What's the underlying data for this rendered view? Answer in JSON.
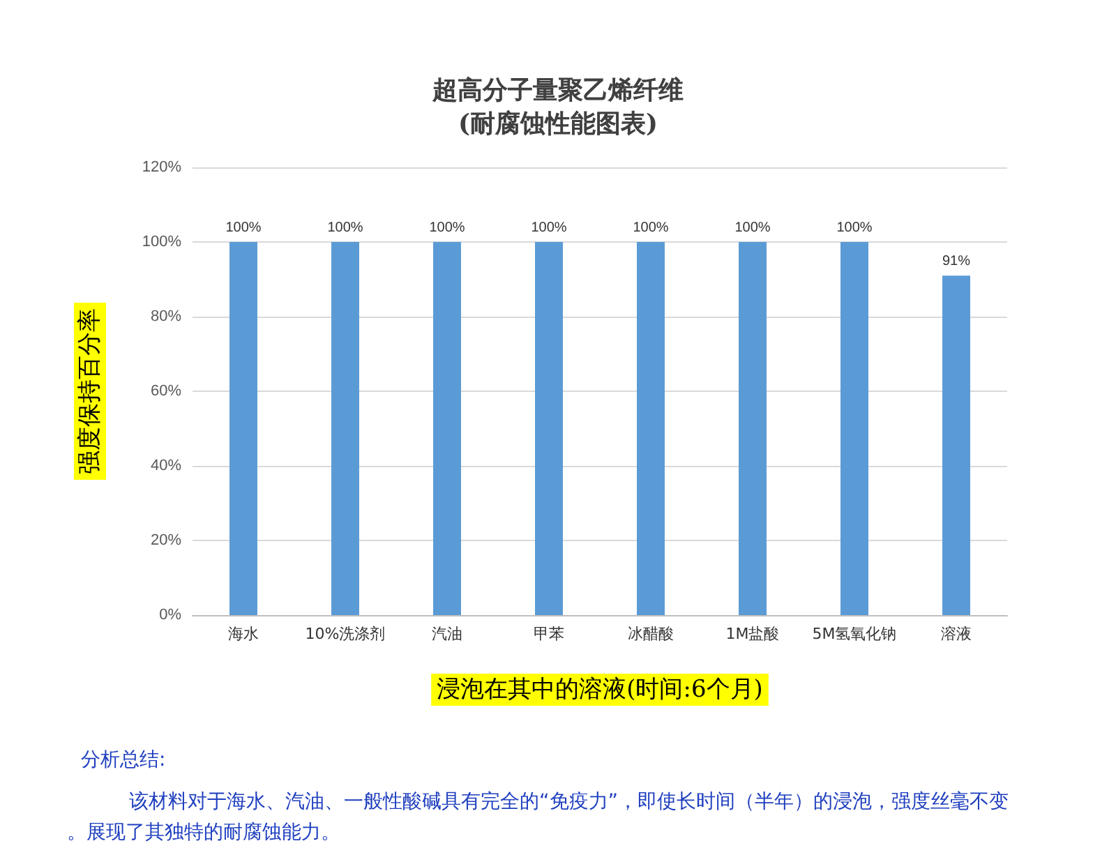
{
  "chart_data": {
    "type": "bar",
    "title": "超高分子量聚乙烯纤维\n(耐腐蚀性能图表)",
    "xlabel": "浸泡在其中的溶液(时间:6个月)",
    "ylabel": "强度保持百分率",
    "categories": [
      "海水",
      "10%洗涤剂",
      "汽油",
      "甲苯",
      "冰醋酸",
      "1M盐酸",
      "5M氢氧化钠",
      "溶液"
    ],
    "values": [
      100,
      100,
      100,
      100,
      100,
      100,
      100,
      91
    ],
    "value_labels": [
      "100%",
      "100%",
      "100%",
      "100%",
      "100%",
      "100%",
      "100%",
      "91%"
    ],
    "color": "#5b9bd5",
    "ylim": [
      0,
      120
    ],
    "yticks": [
      {
        "value": 0,
        "label": "0%"
      },
      {
        "value": 20,
        "label": "20%"
      },
      {
        "value": 40,
        "label": "40%"
      },
      {
        "value": 60,
        "label": "60%"
      },
      {
        "value": 80,
        "label": "80%"
      },
      {
        "value": 100,
        "label": "100%"
      },
      {
        "value": 120,
        "label": "120%"
      }
    ],
    "grid": "y",
    "annotations": [
      "分析总结:",
      "该材料对于海水、汽油、一般性酸碱具有完全的“免疫力”，即使长时间（半年）的浸泡，强度丝毫不变。展现了其独特的耐腐蚀能力。"
    ]
  }
}
